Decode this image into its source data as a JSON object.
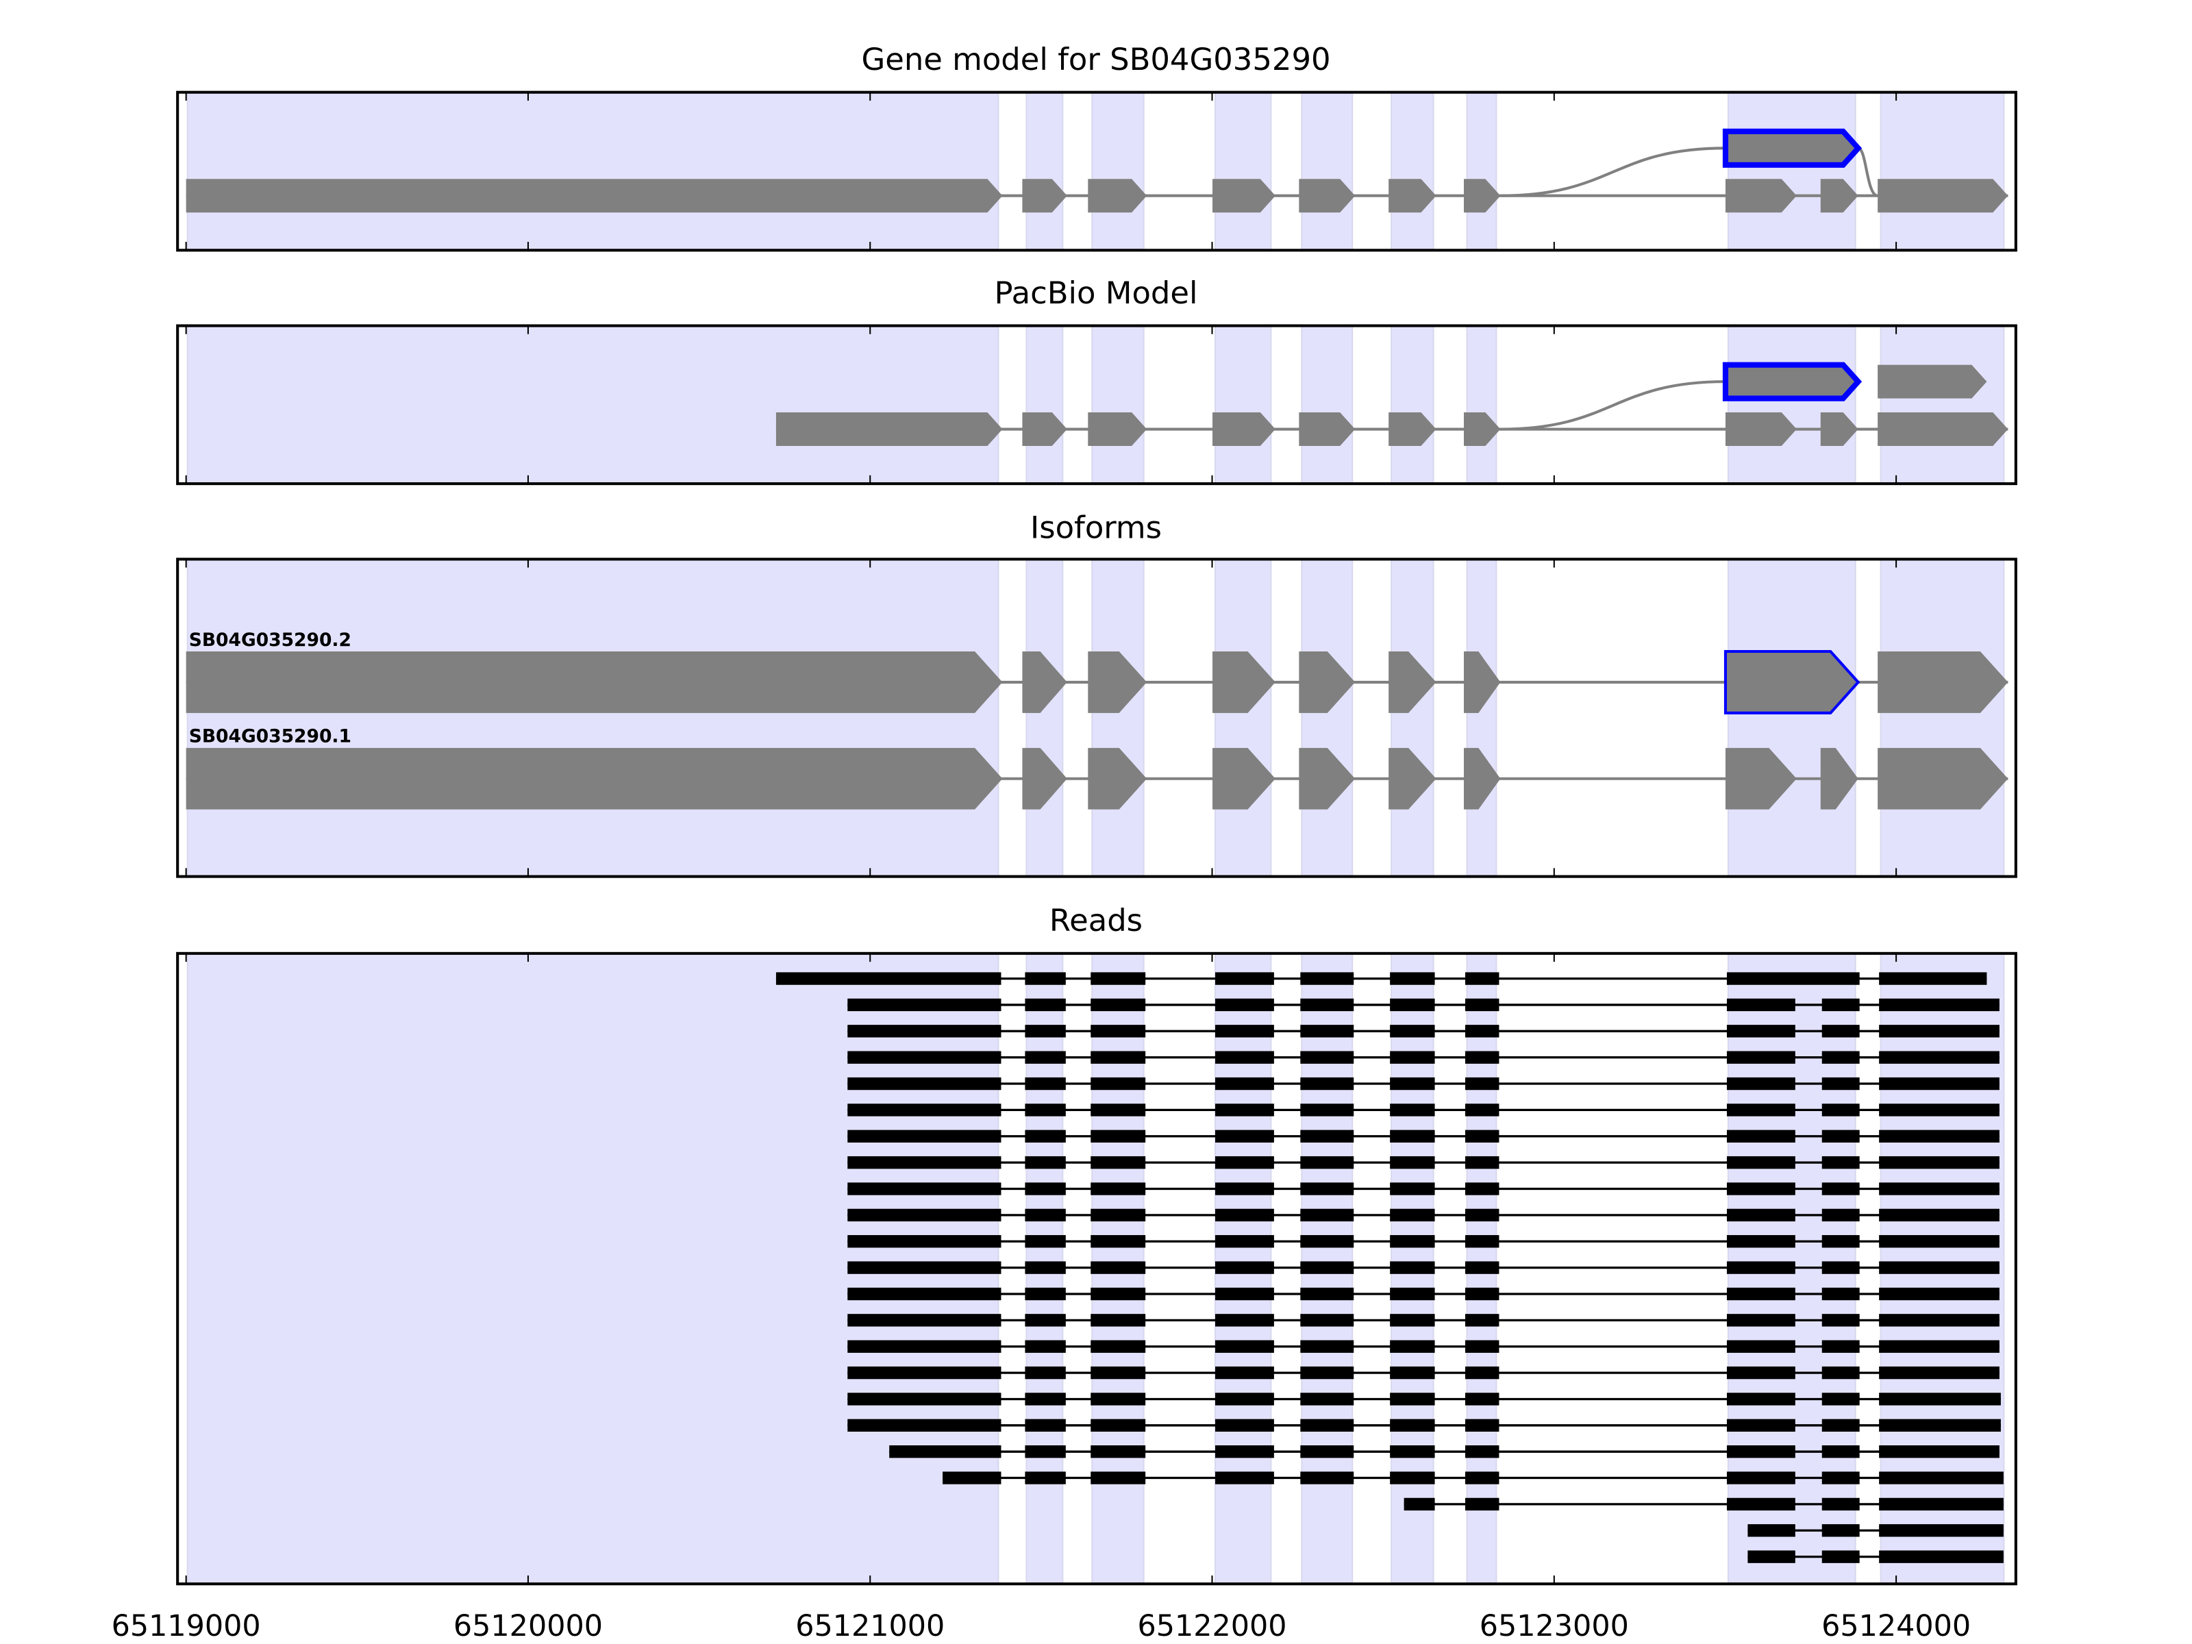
{
  "chart_data": {
    "type": "gene-track",
    "xlim": [
      65118975,
      65124350
    ],
    "x_ticks": [
      65119000,
      65120000,
      65121000,
      65122000,
      65123000,
      65124000
    ],
    "x_tick_labels": [
      "65119000",
      "65120000",
      "65121000",
      "65122000",
      "65123000",
      "65124000"
    ],
    "colors": {
      "shade": "#e2e2fc",
      "exon": "#808080",
      "highlight": "#0000ff",
      "read": "#000000"
    },
    "shaded_regions": [
      [
        65119004,
        65121375
      ],
      [
        65121457,
        65121563
      ],
      [
        65121649,
        65121800
      ],
      [
        65122009,
        65122172
      ],
      [
        65122262,
        65122410
      ],
      [
        65122524,
        65122647
      ],
      [
        65122745,
        65122831
      ],
      [
        65123509,
        65123881
      ],
      [
        65123955,
        65124315
      ]
    ],
    "panels": [
      {
        "title": "Gene model for SB04G035290",
        "kind": "model",
        "rows": [
          {
            "exons": [
              [
                65123501,
                65123889,
                "highlight"
              ]
            ],
            "from_row_below": 65122843,
            "to_row_below": 65123946
          },
          {
            "exons": [
              [
                65119000,
                65121387
              ],
              [
                65121445,
                65121576
              ],
              [
                65121637,
                65121809
              ],
              [
                65122001,
                65122185
              ],
              [
                65122254,
                65122418
              ],
              [
                65122516,
                65122655
              ],
              [
                65122736,
                65122843
              ],
              [
                65123501,
                65123709
              ],
              [
                65123779,
                65123889
              ],
              [
                65123946,
                65124327
              ]
            ]
          }
        ]
      },
      {
        "title": "PacBio Model",
        "kind": "model",
        "rows": [
          {
            "exons": [
              [
                65123501,
                65123889,
                "highlight"
              ],
              [
                65123946,
                65124265
              ]
            ],
            "from_row_below": 65122843
          },
          {
            "exons": [
              [
                65120725,
                65121387
              ],
              [
                65121445,
                65121576
              ],
              [
                65121637,
                65121809
              ],
              [
                65122001,
                65122185
              ],
              [
                65122254,
                65122418
              ],
              [
                65122516,
                65122655
              ],
              [
                65122736,
                65122843
              ],
              [
                65123501,
                65123709
              ],
              [
                65123779,
                65123889
              ],
              [
                65123946,
                65124327
              ]
            ]
          }
        ]
      },
      {
        "title": "Isoforms",
        "kind": "isoforms",
        "rows": [
          {
            "label": "SB04G035290.2",
            "exons": [
              [
                65119000,
                65121387
              ],
              [
                65121445,
                65121576
              ],
              [
                65121637,
                65121809
              ],
              [
                65122001,
                65122185
              ],
              [
                65122254,
                65122418
              ],
              [
                65122516,
                65122655
              ],
              [
                65122736,
                65122843
              ],
              [
                65123501,
                65123889,
                "highlight"
              ],
              [
                65123946,
                65124327
              ]
            ]
          },
          {
            "label": "SB04G035290.1",
            "exons": [
              [
                65119000,
                65121387
              ],
              [
                65121445,
                65121576
              ],
              [
                65121637,
                65121809
              ],
              [
                65122001,
                65122185
              ],
              [
                65122254,
                65122418
              ],
              [
                65122516,
                65122655
              ],
              [
                65122736,
                65122843
              ],
              [
                65123501,
                65123709
              ],
              [
                65123779,
                65123889
              ],
              [
                65123946,
                65124327
              ]
            ]
          }
        ]
      },
      {
        "title": "Reads",
        "kind": "reads",
        "exon_template": [
          [
            65119000,
            65121383
          ],
          [
            65121453,
            65121572
          ],
          [
            65121645,
            65121805
          ],
          [
            65122009,
            65122181
          ],
          [
            65122258,
            65122414
          ],
          [
            65122520,
            65122651
          ],
          [
            65122740,
            65122839
          ],
          [
            65123505,
            65123705
          ],
          [
            65123783,
            65123893
          ],
          [
            65123950,
            65124330
          ]
        ],
        "reads": [
          {
            "start": 65120725,
            "end": 65124265,
            "merge": [
              7,
              8
            ]
          },
          {
            "start": 65120934,
            "end": 65124302
          },
          {
            "start": 65120934,
            "end": 65124302
          },
          {
            "start": 65120934,
            "end": 65124302
          },
          {
            "start": 65120934,
            "end": 65124302
          },
          {
            "start": 65120934,
            "end": 65124302
          },
          {
            "start": 65120934,
            "end": 65124302
          },
          {
            "start": 65120934,
            "end": 65124302
          },
          {
            "start": 65120934,
            "end": 65124302
          },
          {
            "start": 65120934,
            "end": 65124302
          },
          {
            "start": 65120934,
            "end": 65124302
          },
          {
            "start": 65120934,
            "end": 65124302
          },
          {
            "start": 65120934,
            "end": 65124302
          },
          {
            "start": 65120934,
            "end": 65124302
          },
          {
            "start": 65120934,
            "end": 65124302
          },
          {
            "start": 65120934,
            "end": 65124302
          },
          {
            "start": 65120934,
            "end": 65124306
          },
          {
            "start": 65120934,
            "end": 65124306
          },
          {
            "start": 65121056,
            "end": 65124302
          },
          {
            "start": 65121212,
            "end": 65124314
          },
          {
            "start": 65122561,
            "end": 65124314
          },
          {
            "start": 65123566,
            "end": 65124314
          },
          {
            "start": 65123566,
            "end": 65124314
          }
        ]
      }
    ]
  }
}
